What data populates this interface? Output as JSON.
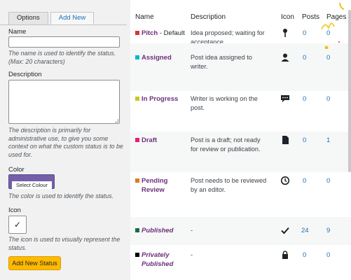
{
  "tabs": [
    {
      "label": "Options",
      "active": false
    },
    {
      "label": "Add New",
      "active": true
    }
  ],
  "form": {
    "name_label": "Name",
    "name_value": "",
    "name_help": "The name is used to identify the status. (Max: 20 characters)",
    "description_label": "Description",
    "description_value": "",
    "description_help": "The description is primarily for administrative use, to give you some context on what the custom status is to be used for.",
    "color_label": "Color",
    "color_button": "Select Colour",
    "color_value": "#7460a8",
    "color_help": "The color is used to identify the status.",
    "icon_label": "Icon",
    "icon_value": "✓",
    "icon_help": "The icon is used to visually represent the status.",
    "submit": "Add New Status"
  },
  "table": {
    "headers": {
      "name": "Name",
      "description": "Description",
      "icon": "Icon",
      "posts": "Posts",
      "pages": "Pages"
    },
    "rows": [
      {
        "name": "Pitch",
        "suffix": " - Default",
        "color": "#d63638",
        "description": "Idea proposed; waiting for acceptance.",
        "icon": "pushpin-icon",
        "posts": "0",
        "pages": "0"
      },
      {
        "name": "Assigned",
        "suffix": "",
        "color": "#00b9c6",
        "description": "Post idea assigned to writer.",
        "icon": "user-icon",
        "posts": "0",
        "pages": "0"
      },
      {
        "name": "In Progress",
        "suffix": "",
        "color": "#c7c821",
        "description": "Writer is working on the post.",
        "icon": "speech-bubble-icon",
        "posts": "0",
        "pages": "0"
      },
      {
        "name": "Draft",
        "suffix": "",
        "color": "#e61e7a",
        "description": "Post is a draft; not ready for review or publication.",
        "icon": "document-icon",
        "posts": "0",
        "pages": "1"
      },
      {
        "name": "Pending Review",
        "suffix": "",
        "color": "#d87f1d",
        "description": "Post needs to be reviewed by an editor.",
        "icon": "clock-icon",
        "posts": "0",
        "pages": "0"
      },
      {
        "name": "Published",
        "suffix": "",
        "color": "#186b4a",
        "description": "-",
        "icon": "checkmark-icon",
        "posts": "24",
        "pages": "9"
      },
      {
        "name": "Privately Published",
        "suffix": "",
        "color": "#000000",
        "description": "-",
        "icon": "lock-icon",
        "posts": "0",
        "pages": "0"
      }
    ]
  }
}
